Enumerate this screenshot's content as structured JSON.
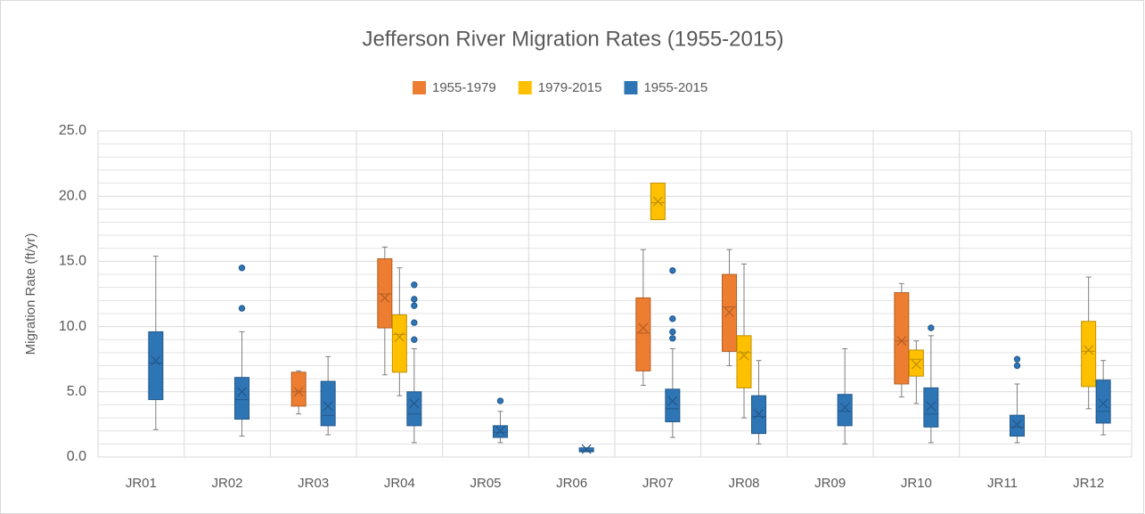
{
  "chart_data": {
    "type": "boxplot",
    "title": "Jefferson River Migration Rates (1955-2015)",
    "y_label": "Migration Rate (ft/yr)",
    "categories": [
      "JR01",
      "JR02",
      "JR03",
      "JR04",
      "JR05",
      "JR06",
      "JR07",
      "JR08",
      "JR09",
      "JR10",
      "JR11",
      "JR12"
    ],
    "ylim": [
      0,
      25
    ],
    "yticks": [
      {
        "value": 0,
        "label": "0.0"
      },
      {
        "value": 5,
        "label": "5.0"
      },
      {
        "value": 10,
        "label": "10.0"
      },
      {
        "value": 15,
        "label": "15.0"
      },
      {
        "value": 20,
        "label": "20.0"
      },
      {
        "value": 25,
        "label": "25.0"
      }
    ],
    "minor_yticks": [
      1,
      2,
      3,
      4,
      6,
      7,
      8,
      9,
      11,
      12,
      13,
      14,
      16,
      17,
      18,
      19,
      21,
      22,
      23,
      24
    ],
    "grid": true,
    "legend": "top",
    "series": [
      {
        "name": "1955-1979",
        "color": "#ed7d31",
        "values": [
          null,
          null,
          {
            "min": 3.3,
            "q1": 3.9,
            "median": 5.0,
            "q3": 6.5,
            "max": 6.6,
            "mean": 5.0,
            "outliers": []
          },
          {
            "min": 6.3,
            "q1": 9.9,
            "median": 12.5,
            "q3": 15.2,
            "max": 16.1,
            "mean": 12.2,
            "outliers": []
          },
          null,
          null,
          {
            "min": 5.5,
            "q1": 6.6,
            "median": 9.5,
            "q3": 12.2,
            "max": 15.9,
            "mean": 9.9,
            "outliers": []
          },
          {
            "min": 7.0,
            "q1": 8.1,
            "median": 11.5,
            "q3": 14.0,
            "max": 15.9,
            "mean": 11.1,
            "outliers": []
          },
          null,
          {
            "min": 4.6,
            "q1": 5.6,
            "median": 8.9,
            "q3": 12.6,
            "max": 13.3,
            "mean": 8.9,
            "outliers": []
          },
          null,
          null
        ]
      },
      {
        "name": "1979-2015",
        "color": "#ffc000",
        "values": [
          null,
          null,
          null,
          {
            "min": 4.7,
            "q1": 6.5,
            "median": 9.4,
            "q3": 10.9,
            "max": 14.5,
            "mean": 9.2,
            "outliers": []
          },
          null,
          null,
          {
            "min": 18.2,
            "q1": 18.2,
            "median": 19.5,
            "q3": 21.0,
            "max": 21.0,
            "mean": 19.6,
            "outliers": []
          },
          {
            "min": 3.0,
            "q1": 5.3,
            "median": 8.0,
            "q3": 9.3,
            "max": 14.8,
            "mean": 7.8,
            "outliers": []
          },
          null,
          {
            "min": 4.1,
            "q1": 6.2,
            "median": 7.5,
            "q3": 8.2,
            "max": 8.9,
            "mean": 7.1,
            "outliers": []
          },
          null,
          {
            "min": 3.7,
            "q1": 5.4,
            "median": 8.1,
            "q3": 10.4,
            "max": 13.8,
            "mean": 8.2,
            "outliers": []
          }
        ]
      },
      {
        "name": "1955-2015",
        "color": "#2e75b6",
        "values": [
          {
            "min": 2.1,
            "q1": 4.4,
            "median": 7.2,
            "q3": 9.6,
            "max": 15.4,
            "mean": 7.4,
            "outliers": []
          },
          {
            "min": 1.6,
            "q1": 2.9,
            "median": 4.4,
            "q3": 6.1,
            "max": 9.6,
            "mean": 5.0,
            "outliers": [
              11.4,
              14.5
            ]
          },
          {
            "min": 1.7,
            "q1": 2.4,
            "median": 3.2,
            "q3": 5.8,
            "max": 7.7,
            "mean": 3.9,
            "outliers": []
          },
          {
            "min": 1.1,
            "q1": 2.4,
            "median": 3.3,
            "q3": 5.0,
            "max": 8.3,
            "mean": 4.1,
            "outliers": [
              9.0,
              10.3,
              11.6,
              12.1,
              13.2
            ]
          },
          {
            "min": 1.1,
            "q1": 1.5,
            "median": 1.9,
            "q3": 2.4,
            "max": 3.5,
            "mean": 2.0,
            "outliers": [
              4.3
            ]
          },
          {
            "min": 0.4,
            "q1": 0.4,
            "median": 0.5,
            "q3": 0.7,
            "max": 0.7,
            "mean": 0.6,
            "outliers": []
          },
          {
            "min": 1.5,
            "q1": 2.7,
            "median": 3.7,
            "q3": 5.2,
            "max": 8.3,
            "mean": 4.3,
            "outliers": [
              9.1,
              9.6,
              10.6,
              14.3
            ]
          },
          {
            "min": 1.0,
            "q1": 1.8,
            "median": 3.1,
            "q3": 4.7,
            "max": 7.4,
            "mean": 3.3,
            "outliers": []
          },
          {
            "min": 1.0,
            "q1": 2.4,
            "median": 3.5,
            "q3": 4.8,
            "max": 8.3,
            "mean": 3.8,
            "outliers": []
          },
          {
            "min": 1.1,
            "q1": 2.3,
            "median": 3.3,
            "q3": 5.3,
            "max": 9.3,
            "mean": 3.9,
            "outliers": [
              9.9
            ]
          },
          {
            "min": 1.1,
            "q1": 1.6,
            "median": 2.3,
            "q3": 3.2,
            "max": 5.6,
            "mean": 2.5,
            "outliers": [
              7.0,
              7.5
            ]
          },
          {
            "min": 1.7,
            "q1": 2.6,
            "median": 3.5,
            "q3": 5.9,
            "max": 7.4,
            "mean": 4.1,
            "outliers": []
          }
        ]
      }
    ]
  }
}
